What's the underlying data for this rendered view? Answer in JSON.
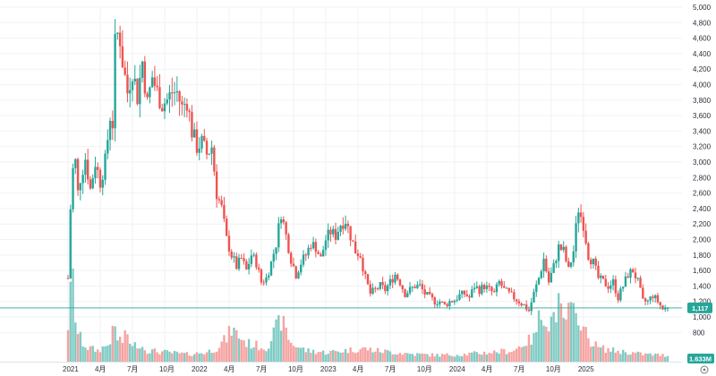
{
  "chart_data": {
    "type": "candlestick",
    "title": "",
    "xlabel": "",
    "ylabel": "",
    "ylim": [
      700,
      5000
    ],
    "grid": true,
    "y_ticks": [
      800,
      1000,
      1200,
      1400,
      1600,
      1800,
      2000,
      2200,
      2400,
      2600,
      2800,
      3000,
      3200,
      3400,
      3600,
      3800,
      4000,
      4200,
      4400,
      4600,
      4800,
      5000
    ],
    "x_tick_labels": [
      "2021",
      "4月",
      "7月",
      "10月",
      "2022",
      "4月",
      "7月",
      "10月",
      "2023",
      "4月",
      "7月",
      "10月",
      "2024",
      "4月",
      "7月",
      "10月",
      "2025"
    ],
    "colors": {
      "up": "#26a69a",
      "down": "#ef5350",
      "up_volume": "#80cbc4",
      "down_volume": "#f5a3a1"
    },
    "last_price": {
      "value": 1117,
      "label": "1,117",
      "color": "#26a69a"
    },
    "last_volume": {
      "label": "1.633M",
      "color": "#26a69a"
    },
    "settings_icon": "gear-icon",
    "weekly_close_anchors": [
      [
        0,
        1500
      ],
      [
        1,
        2400
      ],
      [
        2,
        2900
      ],
      [
        3,
        3000
      ],
      [
        4,
        2600
      ],
      [
        5,
        2800
      ],
      [
        7,
        3050
      ],
      [
        9,
        2650
      ],
      [
        11,
        3000
      ],
      [
        13,
        2750
      ],
      [
        15,
        3000
      ],
      [
        17,
        3600
      ],
      [
        18,
        3500
      ],
      [
        19,
        4500
      ],
      [
        20,
        4650
      ],
      [
        21,
        4600
      ],
      [
        22,
        4300
      ],
      [
        24,
        3900
      ],
      [
        26,
        4200
      ],
      [
        28,
        3850
      ],
      [
        30,
        4300
      ],
      [
        32,
        3750
      ],
      [
        34,
        4100
      ],
      [
        36,
        3900
      ],
      [
        38,
        3750
      ],
      [
        40,
        3800
      ],
      [
        42,
        3900
      ],
      [
        44,
        3900
      ],
      [
        46,
        3700
      ],
      [
        48,
        3800
      ],
      [
        50,
        3400
      ],
      [
        52,
        3200
      ],
      [
        54,
        3250
      ],
      [
        56,
        3100
      ],
      [
        58,
        3200
      ],
      [
        60,
        2600
      ],
      [
        62,
        2400
      ],
      [
        64,
        2000
      ],
      [
        66,
        1800
      ],
      [
        68,
        1650
      ],
      [
        70,
        1750
      ],
      [
        72,
        1600
      ],
      [
        74,
        1800
      ],
      [
        76,
        1700
      ],
      [
        78,
        1450
      ],
      [
        80,
        1500
      ],
      [
        82,
        1700
      ],
      [
        84,
        1950
      ],
      [
        86,
        2350
      ],
      [
        88,
        2050
      ],
      [
        90,
        1750
      ],
      [
        92,
        1550
      ],
      [
        94,
        1700
      ],
      [
        96,
        1800
      ],
      [
        98,
        1950
      ],
      [
        100,
        1900
      ],
      [
        102,
        1750
      ],
      [
        104,
        2000
      ],
      [
        106,
        2100
      ],
      [
        108,
        2050
      ],
      [
        110,
        2200
      ],
      [
        112,
        2250
      ],
      [
        114,
        2050
      ],
      [
        116,
        1850
      ],
      [
        118,
        1800
      ],
      [
        120,
        1500
      ],
      [
        122,
        1300
      ],
      [
        124,
        1350
      ],
      [
        126,
        1400
      ],
      [
        128,
        1350
      ],
      [
        130,
        1450
      ],
      [
        132,
        1550
      ],
      [
        134,
        1450
      ],
      [
        136,
        1300
      ],
      [
        138,
        1350
      ],
      [
        140,
        1400
      ],
      [
        142,
        1400
      ],
      [
        144,
        1300
      ],
      [
        146,
        1250
      ],
      [
        148,
        1200
      ],
      [
        150,
        1200
      ],
      [
        152,
        1150
      ],
      [
        154,
        1200
      ],
      [
        156,
        1220
      ],
      [
        158,
        1280
      ],
      [
        160,
        1300
      ],
      [
        162,
        1250
      ],
      [
        164,
        1400
      ],
      [
        166,
        1350
      ],
      [
        168,
        1400
      ],
      [
        170,
        1350
      ],
      [
        172,
        1300
      ],
      [
        174,
        1450
      ],
      [
        176,
        1350
      ],
      [
        178,
        1300
      ],
      [
        180,
        1250
      ],
      [
        182,
        1200
      ],
      [
        184,
        1150
      ],
      [
        186,
        1080
      ],
      [
        188,
        1300
      ],
      [
        190,
        1500
      ],
      [
        192,
        1750
      ],
      [
        194,
        1450
      ],
      [
        196,
        1650
      ],
      [
        198,
        1900
      ],
      [
        200,
        1850
      ],
      [
        202,
        1600
      ],
      [
        204,
        1850
      ],
      [
        205,
        2150
      ],
      [
        206,
        2400
      ],
      [
        208,
        2200
      ],
      [
        210,
        1800
      ],
      [
        212,
        1700
      ],
      [
        214,
        1500
      ],
      [
        216,
        1450
      ],
      [
        218,
        1400
      ],
      [
        220,
        1450
      ],
      [
        222,
        1250
      ],
      [
        224,
        1400
      ],
      [
        226,
        1550
      ],
      [
        228,
        1600
      ],
      [
        230,
        1450
      ],
      [
        232,
        1200
      ],
      [
        234,
        1200
      ],
      [
        236,
        1280
      ],
      [
        238,
        1200
      ],
      [
        240,
        1100
      ],
      [
        242,
        1117
      ]
    ],
    "weekly_volume_anchors": [
      [
        0,
        0.4
      ],
      [
        2,
        1.0
      ],
      [
        3,
        0.5
      ],
      [
        4,
        0.3
      ],
      [
        6,
        0.2
      ],
      [
        8,
        0.15
      ],
      [
        12,
        0.12
      ],
      [
        16,
        0.18
      ],
      [
        18,
        0.3
      ],
      [
        19,
        0.35
      ],
      [
        20,
        0.25
      ],
      [
        22,
        0.22
      ],
      [
        24,
        0.3
      ],
      [
        26,
        0.15
      ],
      [
        28,
        0.2
      ],
      [
        32,
        0.12
      ],
      [
        40,
        0.1
      ],
      [
        48,
        0.08
      ],
      [
        56,
        0.1
      ],
      [
        60,
        0.15
      ],
      [
        64,
        0.25
      ],
      [
        66,
        0.35
      ],
      [
        68,
        0.3
      ],
      [
        72,
        0.2
      ],
      [
        80,
        0.15
      ],
      [
        86,
        0.45
      ],
      [
        90,
        0.2
      ],
      [
        96,
        0.12
      ],
      [
        104,
        0.1
      ],
      [
        112,
        0.12
      ],
      [
        120,
        0.14
      ],
      [
        124,
        0.12
      ],
      [
        132,
        0.1
      ],
      [
        140,
        0.08
      ],
      [
        150,
        0.07
      ],
      [
        160,
        0.08
      ],
      [
        170,
        0.1
      ],
      [
        180,
        0.12
      ],
      [
        184,
        0.2
      ],
      [
        188,
        0.25
      ],
      [
        190,
        0.45
      ],
      [
        192,
        0.55
      ],
      [
        194,
        0.4
      ],
      [
        196,
        0.5
      ],
      [
        198,
        0.6
      ],
      [
        200,
        0.4
      ],
      [
        202,
        0.55
      ],
      [
        204,
        0.5
      ],
      [
        205,
        0.45
      ],
      [
        206,
        0.55
      ],
      [
        208,
        0.35
      ],
      [
        210,
        0.25
      ],
      [
        214,
        0.15
      ],
      [
        220,
        0.12
      ],
      [
        226,
        0.1
      ],
      [
        232,
        0.08
      ],
      [
        240,
        0.07
      ],
      [
        242,
        0.07
      ]
    ]
  }
}
